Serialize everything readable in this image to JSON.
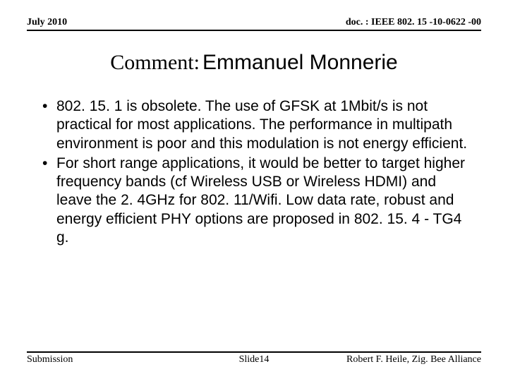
{
  "header": {
    "date": "July 2010",
    "doc": "doc. : IEEE 802. 15 -10-0622 -00"
  },
  "title": {
    "prefix": "Comment:",
    "name": "Emmanuel Monnerie"
  },
  "bullets": [
    "802. 15. 1 is obsolete. The use of GFSK at 1Mbit/s is not practical for most applications. The performance in multipath environment is poor and this modulation is not energy efficient.",
    "For short range applications, it would be better to target higher frequency bands (cf Wireless USB or Wireless HDMI) and leave the 2. 4GHz for 802. 11/Wifi. Low data rate, robust and energy efficient PHY options are proposed in 802. 15. 4 - TG4 g."
  ],
  "footer": {
    "left": "Submission",
    "center": "Slide14",
    "right": "Robert F. Heile, Zig. Bee Alliance"
  }
}
